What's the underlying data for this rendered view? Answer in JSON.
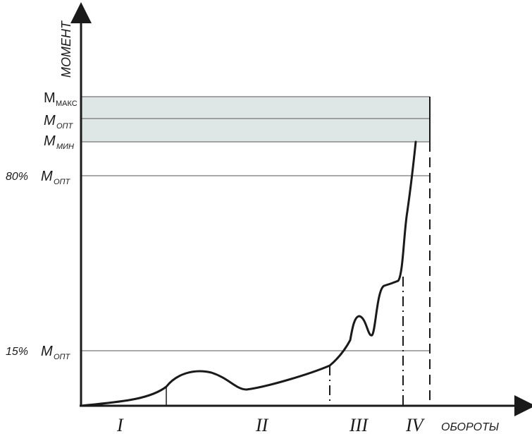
{
  "axes": {
    "y_label": "МОМЕНТ",
    "x_label": "ОБОРОТЫ"
  },
  "levels": {
    "m_max": {
      "base": "M",
      "sub": "МАКС"
    },
    "m_opt": {
      "base": "M",
      "sub": "ОПТ"
    },
    "m_min": {
      "base": "M",
      "sub": "МИН"
    },
    "p80": {
      "prefix": "80% ",
      "base": "M",
      "sub": "ОПТ"
    },
    "p15": {
      "prefix": "15% ",
      "base": "M",
      "sub": "ОПТ"
    }
  },
  "zones": [
    "I",
    "II",
    "III",
    "IV"
  ],
  "colors": {
    "band": "#dfe6e6",
    "line": "#1a1a1a",
    "grid": "#555555"
  }
}
